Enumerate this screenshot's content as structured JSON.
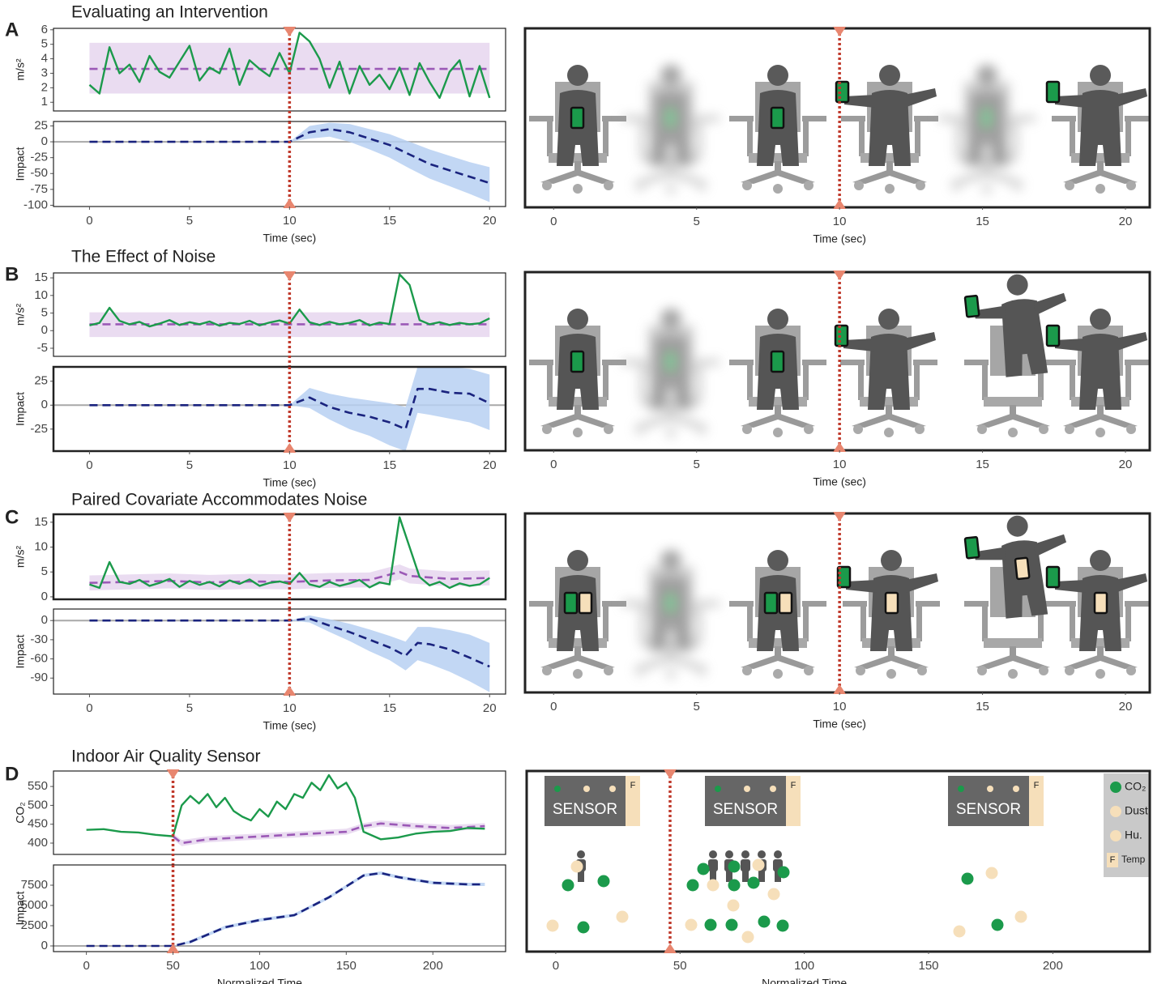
{
  "panels": [
    {
      "label": "A",
      "title": "Evaluating an Intervention"
    },
    {
      "label": "B",
      "title": "The Effect of Noise"
    },
    {
      "label": "C",
      "title": "Paired Covariate Accommodates Noise"
    },
    {
      "label": "D",
      "title": "Indoor Air Quality Sensor"
    }
  ],
  "chart_data": [
    {
      "type": "line",
      "ylabel": "m/s²",
      "xlim": [
        -1.8,
        20.8
      ],
      "ylim": [
        0.4,
        6.1
      ],
      "yticks": [
        1,
        2,
        3,
        4,
        5,
        6
      ],
      "intervention": 10,
      "series": [
        {
          "color": "#9b59b6",
          "band_color": "#e6d6ef",
          "dash": true,
          "x": [
            0,
            20
          ],
          "values": [
            3.3,
            3.3
          ],
          "lower": [
            1.6,
            1.6
          ],
          "upper": [
            5.1,
            5.1
          ]
        },
        {
          "color": "#1b9a4b",
          "x": [
            0,
            0.5,
            1,
            1.5,
            2,
            2.5,
            3,
            3.5,
            4,
            4.5,
            5,
            5.5,
            6,
            6.5,
            7,
            7.5,
            8,
            8.5,
            9,
            9.5,
            10,
            10.5,
            11,
            11.5,
            12,
            12.5,
            13,
            13.5,
            14,
            14.5,
            15,
            15.5,
            16,
            16.5,
            17,
            17.5,
            18,
            18.5,
            19,
            19.5,
            20
          ],
          "values": [
            2.2,
            1.6,
            4.8,
            3.0,
            3.6,
            2.4,
            4.2,
            3.1,
            2.7,
            3.8,
            4.9,
            2.5,
            3.4,
            3.0,
            4.7,
            2.2,
            3.9,
            3.3,
            2.8,
            4.4,
            3.0,
            5.8,
            5.2,
            4.0,
            2.0,
            3.8,
            1.6,
            3.5,
            2.2,
            2.9,
            1.9,
            3.4,
            1.5,
            3.7,
            2.4,
            1.3,
            3.1,
            3.9,
            1.4,
            3.5,
            1.3
          ]
        }
      ]
    },
    {
      "type": "line",
      "ylabel": "Impact",
      "xlim": [
        -1.8,
        20.8
      ],
      "ylim": [
        -102,
        32
      ],
      "yticks": [
        25,
        0,
        -25,
        -50,
        -75,
        -100
      ],
      "xticks": [
        0,
        5,
        10,
        15,
        20
      ],
      "xlabel": "Time (sec)",
      "intervention": 10,
      "hline": 0,
      "series": [
        {
          "color": "#1a237e",
          "band_color": "#b7d0f2",
          "dash": true,
          "x": [
            0,
            1,
            2,
            3,
            4,
            5,
            6,
            7,
            8,
            9,
            10,
            11,
            12,
            13,
            14,
            15,
            16,
            17,
            18,
            19,
            20
          ],
          "values": [
            0,
            0,
            0,
            0,
            0,
            0,
            0,
            0,
            0,
            0,
            0,
            15,
            20,
            15,
            5,
            -5,
            -20,
            -35,
            -45,
            -55,
            -65
          ],
          "lower": [
            0,
            0,
            0,
            0,
            0,
            0,
            0,
            0,
            0,
            0,
            0,
            5,
            8,
            0,
            -12,
            -25,
            -42,
            -58,
            -70,
            -82,
            -95
          ],
          "upper": [
            0,
            0,
            0,
            0,
            0,
            0,
            0,
            0,
            0,
            0,
            0,
            25,
            30,
            28,
            20,
            12,
            0,
            -12,
            -22,
            -32,
            -40
          ]
        }
      ]
    },
    {
      "type": "illustration",
      "xlim": [
        -1,
        20.85
      ],
      "xticks": [
        0,
        5,
        10,
        15,
        20
      ],
      "xlabel": "Time (sec)",
      "intervention": 10
    },
    {
      "type": "line",
      "ylabel": "m/s²",
      "xlim": [
        -1.8,
        20.8
      ],
      "ylim": [
        -7.3,
        16.4
      ],
      "yticks": [
        15,
        10,
        5,
        0,
        -5
      ],
      "intervention": 10,
      "series": [
        {
          "color": "#9b59b6",
          "band_color": "#e6d6ef",
          "dash": true,
          "x": [
            0,
            20
          ],
          "values": [
            1.8,
            1.8
          ],
          "lower": [
            -1.8,
            -1.8
          ],
          "upper": [
            5.2,
            5.2
          ]
        },
        {
          "color": "#1b9a4b",
          "x": [
            0,
            0.5,
            1,
            1.5,
            2,
            2.5,
            3,
            3.5,
            4,
            4.5,
            5,
            5.5,
            6,
            6.5,
            7,
            7.5,
            8,
            8.5,
            9,
            9.5,
            10,
            10.5,
            11,
            11.5,
            12,
            12.5,
            13,
            13.5,
            14,
            14.5,
            15,
            15.5,
            16,
            16.5,
            17,
            17.5,
            18,
            18.5,
            19,
            19.5,
            20
          ],
          "values": [
            1.5,
            2.2,
            6.5,
            2.8,
            1.8,
            2.5,
            1.2,
            2.0,
            3.0,
            1.6,
            2.4,
            1.8,
            2.6,
            1.4,
            2.2,
            1.9,
            2.8,
            1.5,
            2.3,
            2.9,
            2.0,
            6.0,
            2.4,
            1.6,
            2.5,
            1.8,
            2.2,
            3.0,
            1.5,
            2.3,
            1.9,
            16.0,
            13.0,
            3.0,
            1.8,
            2.4,
            1.6,
            2.2,
            1.8,
            2.1,
            3.5
          ]
        }
      ]
    },
    {
      "type": "line",
      "ylabel": "Impact",
      "xlim": [
        -1.8,
        20.8
      ],
      "ylim": [
        -48,
        40
      ],
      "yticks": [
        25,
        0,
        -25
      ],
      "xticks": [
        0,
        5,
        10,
        15,
        20
      ],
      "xlabel": "Time (sec)",
      "intervention": 10,
      "hline": 0,
      "frame": "bold",
      "series": [
        {
          "color": "#1a237e",
          "band_color": "#b7d0f2",
          "dash": true,
          "x": [
            0,
            10,
            11,
            12,
            13,
            14,
            15,
            15.8,
            16.4,
            17,
            18,
            19,
            20
          ],
          "values": [
            0,
            0,
            8,
            -2,
            -8,
            -12,
            -18,
            -25,
            17,
            17,
            13,
            12,
            2
          ],
          "lower": [
            0,
            0,
            -3,
            -15,
            -25,
            -32,
            -42,
            -48,
            -8,
            -10,
            -14,
            -18,
            -26
          ],
          "upper": [
            0,
            0,
            18,
            12,
            8,
            5,
            2,
            -2,
            40,
            42,
            40,
            38,
            32
          ]
        }
      ]
    },
    {
      "type": "illustration",
      "xlim": [
        -1,
        20.85
      ],
      "xticks": [
        0,
        5,
        10,
        15,
        20
      ],
      "xlabel": "Time (sec)",
      "intervention": 10
    },
    {
      "type": "line",
      "ylabel": "m/s²",
      "xlim": [
        -1.8,
        20.8
      ],
      "ylim": [
        -0.5,
        16.6
      ],
      "yticks": [
        15,
        10,
        5,
        0
      ],
      "intervention": 10,
      "frame": "bold",
      "series": [
        {
          "color": "#9b59b6",
          "band_color": "#e6d6ef",
          "dash": true,
          "x": [
            0,
            2,
            4,
            6,
            8,
            10,
            12,
            14,
            15.5,
            16,
            18,
            20
          ],
          "values": [
            2.8,
            3.0,
            3.2,
            2.9,
            3.1,
            3.0,
            3.3,
            3.4,
            5.0,
            4.2,
            3.6,
            3.8
          ],
          "lower": [
            1.3,
            1.5,
            1.7,
            1.4,
            1.6,
            1.5,
            1.8,
            1.9,
            3.5,
            2.7,
            2.1,
            2.3
          ],
          "upper": [
            4.3,
            4.5,
            4.7,
            4.4,
            4.6,
            4.5,
            4.8,
            4.9,
            6.5,
            5.7,
            5.1,
            5.3
          ]
        },
        {
          "color": "#1b9a4b",
          "x": [
            0,
            0.5,
            1,
            1.5,
            2,
            2.5,
            3,
            3.5,
            4,
            4.5,
            5,
            5.5,
            6,
            6.5,
            7,
            7.5,
            8,
            8.5,
            9,
            9.5,
            10,
            10.5,
            11,
            11.5,
            12,
            12.5,
            13,
            13.5,
            14,
            14.5,
            15,
            15.5,
            16,
            16.5,
            17,
            17.5,
            18,
            18.5,
            19,
            19.5,
            20
          ],
          "values": [
            2.5,
            1.8,
            7.0,
            3.0,
            2.6,
            3.4,
            2.2,
            2.8,
            3.6,
            2.0,
            3.2,
            2.4,
            3.0,
            2.1,
            3.3,
            2.6,
            3.5,
            2.2,
            2.8,
            3.1,
            2.6,
            4.8,
            2.5,
            2.0,
            3.0,
            2.2,
            2.7,
            3.4,
            1.9,
            2.9,
            2.5,
            16.0,
            10.0,
            4.0,
            2.3,
            3.0,
            1.8,
            2.7,
            2.2,
            2.5,
            3.8
          ]
        }
      ]
    },
    {
      "type": "line",
      "ylabel": "Impact",
      "xlim": [
        -1.8,
        20.8
      ],
      "ylim": [
        -115,
        18
      ],
      "yticks": [
        0,
        -30,
        -60,
        -90
      ],
      "xticks": [
        0,
        5,
        10,
        15,
        20
      ],
      "xlabel": "Time (sec)",
      "intervention": 10,
      "hline": 0,
      "series": [
        {
          "color": "#1a237e",
          "band_color": "#b7d0f2",
          "dash": true,
          "x": [
            0,
            10,
            11,
            12,
            13,
            14,
            15,
            15.8,
            16.4,
            17,
            18,
            19,
            20
          ],
          "values": [
            0,
            0,
            3,
            -8,
            -18,
            -30,
            -42,
            -55,
            -35,
            -37,
            -45,
            -58,
            -72
          ],
          "lower": [
            0,
            0,
            -3,
            -18,
            -32,
            -48,
            -62,
            -78,
            -62,
            -68,
            -80,
            -95,
            -112
          ],
          "upper": [
            0,
            0,
            8,
            2,
            -5,
            -14,
            -24,
            -33,
            -10,
            -10,
            -15,
            -22,
            -35
          ]
        }
      ]
    },
    {
      "type": "illustration",
      "xlim": [
        -1,
        20.85
      ],
      "xticks": [
        0,
        5,
        10,
        15,
        20
      ],
      "xlabel": "Time (sec)",
      "intervention": 10
    },
    {
      "type": "line",
      "ylabel": "CO₂",
      "xlim": [
        -19,
        242
      ],
      "ylim": [
        370,
        591
      ],
      "yticks": [
        550,
        500,
        450,
        400
      ],
      "intervention": 50,
      "series": [
        {
          "color": "#9b59b6",
          "band_color": "#e6d6ef",
          "dash": true,
          "x": [
            50,
            55,
            70,
            90,
            110,
            130,
            150,
            160,
            170,
            190,
            210,
            230
          ],
          "values": [
            418,
            400,
            410,
            415,
            420,
            425,
            430,
            445,
            452,
            445,
            440,
            445
          ],
          "lower": [
            410,
            392,
            402,
            407,
            412,
            417,
            422,
            437,
            444,
            437,
            432,
            437
          ],
          "upper": [
            426,
            408,
            418,
            423,
            428,
            433,
            438,
            453,
            460,
            453,
            448,
            453
          ]
        },
        {
          "color": "#1b9a4b",
          "x": [
            0,
            10,
            20,
            30,
            40,
            50,
            55,
            60,
            65,
            70,
            75,
            80,
            85,
            90,
            95,
            100,
            105,
            110,
            115,
            120,
            125,
            130,
            135,
            140,
            145,
            150,
            155,
            160,
            170,
            180,
            190,
            200,
            210,
            220,
            230
          ],
          "values": [
            435,
            437,
            430,
            428,
            422,
            418,
            500,
            525,
            505,
            530,
            495,
            520,
            485,
            470,
            460,
            490,
            470,
            510,
            490,
            530,
            520,
            560,
            540,
            580,
            545,
            560,
            520,
            430,
            410,
            415,
            425,
            430,
            432,
            440,
            438
          ]
        }
      ]
    },
    {
      "type": "line",
      "ylabel": "Impact",
      "xlim": [
        -19,
        242
      ],
      "ylim": [
        -700,
        10000
      ],
      "yticks": [
        7500,
        5000,
        2500,
        0
      ],
      "xticks": [
        0,
        50,
        100,
        150,
        200
      ],
      "xlabel": "Normalized Time",
      "intervention": 50,
      "hline": 0,
      "series": [
        {
          "color": "#1a237e",
          "band_color": "#b7d0f2",
          "dash": true,
          "x": [
            0,
            50,
            60,
            80,
            100,
            120,
            140,
            160,
            170,
            180,
            200,
            220,
            230
          ],
          "values": [
            0,
            0,
            500,
            2300,
            3200,
            3800,
            6000,
            8700,
            9000,
            8500,
            7800,
            7600,
            7600
          ],
          "lower": [
            0,
            0,
            300,
            2100,
            3000,
            3600,
            5800,
            8500,
            8800,
            8300,
            7600,
            7400,
            7400
          ],
          "upper": [
            0,
            0,
            700,
            2500,
            3400,
            4000,
            6200,
            8900,
            9200,
            8700,
            8000,
            7800,
            7800
          ]
        }
      ]
    },
    {
      "type": "illustration",
      "xlim": [
        -11.7,
        239
      ],
      "xticks": [
        0,
        50,
        100,
        150,
        200
      ],
      "xlabel": "Normalized Time",
      "intervention": 46,
      "sensors": [
        "SENSOR",
        "SENSOR",
        "SENSOR"
      ],
      "sensor_flags": [
        "F",
        "F",
        "F"
      ],
      "legend": [
        {
          "label": "CO₂",
          "color": "#1b9a4b"
        },
        {
          "label": "Dust",
          "color": "#f6dfba"
        },
        {
          "label": "Hu.",
          "color": "#f6dfba"
        },
        {
          "label": "Temp",
          "flag": "F",
          "color": "#f6dfba"
        }
      ]
    }
  ]
}
